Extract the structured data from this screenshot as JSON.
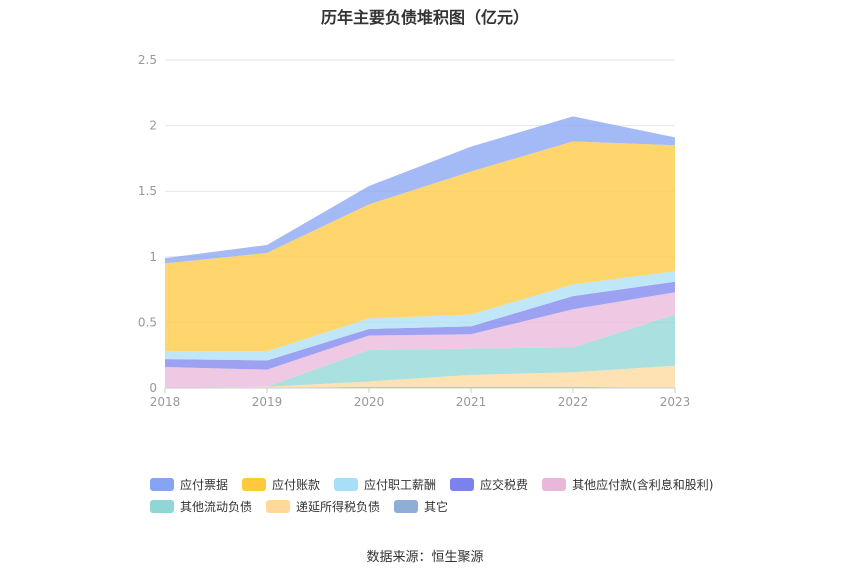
{
  "chart_data": {
    "type": "area",
    "stacked": true,
    "title": "历年主要负债堆积图（亿元）",
    "source": "数据来源：恒生聚源",
    "x": [
      "2018",
      "2019",
      "2020",
      "2021",
      "2022",
      "2023"
    ],
    "y_ticks": [
      "0",
      "0.5",
      "1",
      "1.5",
      "2",
      "2.5"
    ],
    "ylim": [
      0,
      2.5
    ],
    "grid": true,
    "legend_position": "bottom",
    "series": [
      {
        "name": "其它",
        "color": "#8eaed8",
        "values": [
          0.0,
          0.0,
          0.01,
          0.01,
          0.01,
          0.0
        ]
      },
      {
        "name": "递延所得税负债",
        "color": "#ffd89a",
        "values": [
          0.0,
          0.01,
          0.04,
          0.09,
          0.11,
          0.17
        ]
      },
      {
        "name": "其他流动负债",
        "color": "#8fd6d6",
        "values": [
          0.0,
          0.0,
          0.24,
          0.2,
          0.19,
          0.39
        ]
      },
      {
        "name": "其他应付款(含利息和股利)",
        "color": "#e9b7d9",
        "values": [
          0.16,
          0.13,
          0.11,
          0.11,
          0.29,
          0.17
        ]
      },
      {
        "name": "应交税费",
        "color": "#7b82ee",
        "values": [
          0.06,
          0.07,
          0.05,
          0.06,
          0.1,
          0.08
        ]
      },
      {
        "name": "应付职工薪酬",
        "color": "#a9dff6",
        "values": [
          0.06,
          0.07,
          0.08,
          0.09,
          0.09,
          0.08
        ]
      },
      {
        "name": "应付账款",
        "color": "#ffc83d",
        "values": [
          0.67,
          0.75,
          0.87,
          1.09,
          1.09,
          0.96
        ]
      },
      {
        "name": "应付票据",
        "color": "#86a3f4",
        "values": [
          0.04,
          0.06,
          0.14,
          0.19,
          0.19,
          0.06
        ]
      }
    ],
    "legend": [
      {
        "name": "应付票据",
        "color": "#86a3f4"
      },
      {
        "name": "应付账款",
        "color": "#ffc83d"
      },
      {
        "name": "应付职工薪酬",
        "color": "#a9dff6"
      },
      {
        "name": "应交税费",
        "color": "#7b82ee"
      },
      {
        "name": "其他应付款(含利息和股利)",
        "color": "#e9b7d9"
      },
      {
        "name": "其他流动负债",
        "color": "#8fd6d6"
      },
      {
        "name": "递延所得税负债",
        "color": "#ffd89a"
      },
      {
        "name": "其它",
        "color": "#8eaed8"
      }
    ]
  }
}
